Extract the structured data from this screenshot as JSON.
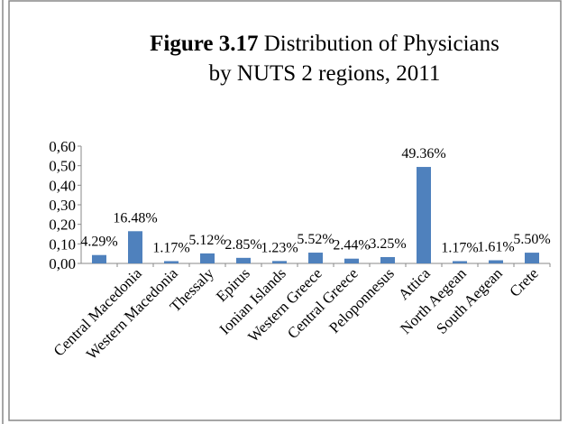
{
  "chart_data": {
    "type": "bar",
    "figure_number": "Figure 3.17",
    "title_lines": [
      "Distribution of Physicians",
      "by NUTS 2 regions, 2011"
    ],
    "categories": [
      null,
      "Central Macedonia",
      "Western Macedonia",
      "Thessaly",
      "Epirus",
      "Ionian Islands",
      "Western Greece",
      "Central Greece",
      "Peloponnesus",
      "Attica",
      "North Aegean",
      "South Aegean",
      "Crete"
    ],
    "values": [
      0.0429,
      0.1648,
      0.0117,
      0.0512,
      0.0285,
      0.0123,
      0.0552,
      0.0244,
      0.0325,
      0.4936,
      0.0117,
      0.0161,
      0.055
    ],
    "value_labels": [
      "4.29%",
      "16.48%",
      "1.17%",
      "5.12%",
      "2.85%",
      "1.23%",
      "5.52%",
      "2.44%",
      "3.25%",
      "49.36%",
      "1.17%",
      "1.61%",
      "5.50%"
    ],
    "color": "#4f81bd",
    "ylim": [
      0,
      0.6
    ],
    "yticks": [
      {
        "value": 0,
        "label": "0,00"
      },
      {
        "value": 0.1,
        "label": "0,10"
      },
      {
        "value": 0.2,
        "label": "0,20"
      },
      {
        "value": 0.3,
        "label": "0,30"
      },
      {
        "value": 0.4,
        "label": "0,40"
      },
      {
        "value": 0.5,
        "label": "0,50"
      },
      {
        "value": 0.6,
        "label": "0,60"
      }
    ],
    "grid": false
  }
}
